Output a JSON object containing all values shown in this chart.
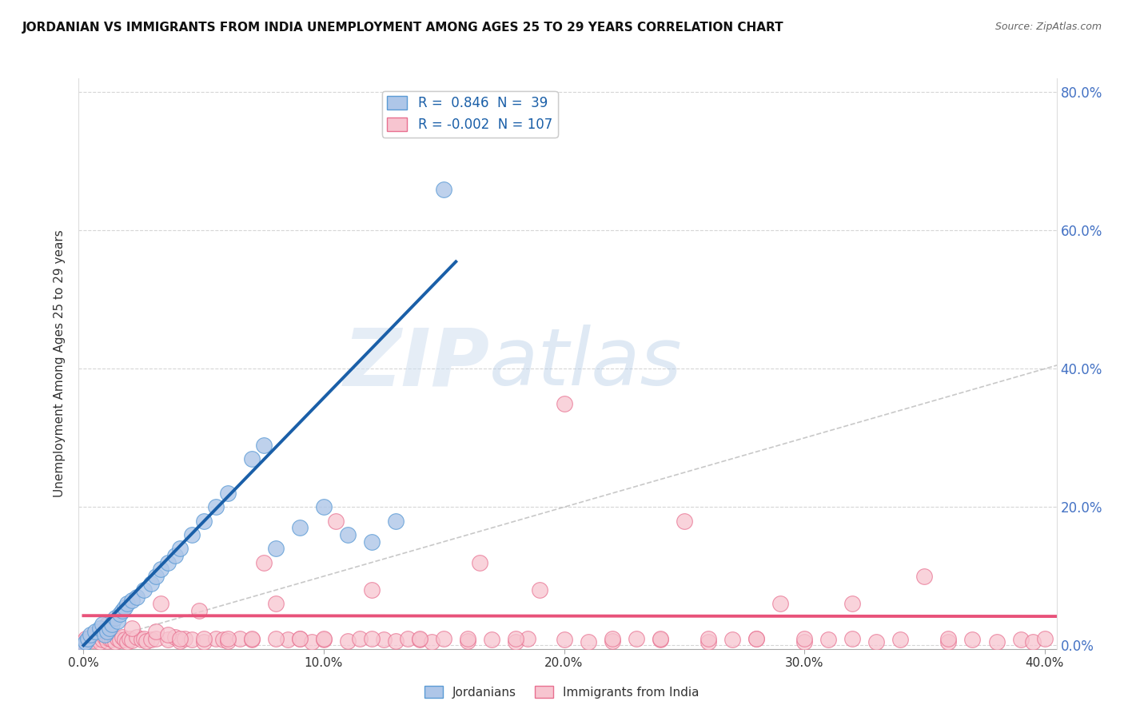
{
  "title": "JORDANIAN VS IMMIGRANTS FROM INDIA UNEMPLOYMENT AMONG AGES 25 TO 29 YEARS CORRELATION CHART",
  "source": "Source: ZipAtlas.com",
  "ylabel": "Unemployment Among Ages 25 to 29 years",
  "xlim": [
    -0.002,
    0.405
  ],
  "ylim": [
    -0.005,
    0.82
  ],
  "xticks": [
    0.0,
    0.1,
    0.2,
    0.3,
    0.4
  ],
  "xtick_labels": [
    "0.0%",
    "10.0%",
    "20.0%",
    "30.0%",
    "40.0%"
  ],
  "yticks": [
    0.0,
    0.2,
    0.4,
    0.6,
    0.8
  ],
  "ytick_labels_right": [
    "0.0%",
    "20.0%",
    "40.0%",
    "60.0%",
    "80.0%"
  ],
  "legend_blue_label": "R =  0.846  N =  39",
  "legend_pink_label": "R = -0.002  N = 107",
  "watermark_zip": "ZIP",
  "watermark_atlas": "atlas",
  "blue_color": "#aec6e8",
  "blue_edge_color": "#5b9bd5",
  "pink_color": "#f7c5d0",
  "pink_edge_color": "#e87090",
  "blue_line_color": "#1a5fa8",
  "pink_line_color": "#e8527a",
  "grid_color": "#cccccc",
  "blue_scatter_x": [
    0.0,
    0.001,
    0.002,
    0.003,
    0.005,
    0.007,
    0.008,
    0.009,
    0.01,
    0.011,
    0.012,
    0.013,
    0.014,
    0.015,
    0.016,
    0.017,
    0.018,
    0.02,
    0.022,
    0.025,
    0.028,
    0.03,
    0.032,
    0.035,
    0.038,
    0.04,
    0.045,
    0.05,
    0.055,
    0.06,
    0.07,
    0.075,
    0.08,
    0.09,
    0.1,
    0.11,
    0.12,
    0.13,
    0.15
  ],
  "blue_scatter_y": [
    0.0,
    0.005,
    0.01,
    0.015,
    0.02,
    0.025,
    0.03,
    0.015,
    0.02,
    0.025,
    0.03,
    0.04,
    0.035,
    0.045,
    0.05,
    0.055,
    0.06,
    0.065,
    0.07,
    0.08,
    0.09,
    0.1,
    0.11,
    0.12,
    0.13,
    0.14,
    0.16,
    0.18,
    0.2,
    0.22,
    0.27,
    0.29,
    0.14,
    0.17,
    0.2,
    0.16,
    0.15,
    0.18,
    0.66
  ],
  "pink_scatter_x": [
    0.0,
    0.001,
    0.002,
    0.003,
    0.004,
    0.005,
    0.006,
    0.007,
    0.008,
    0.009,
    0.01,
    0.011,
    0.012,
    0.013,
    0.014,
    0.015,
    0.016,
    0.017,
    0.018,
    0.019,
    0.02,
    0.022,
    0.024,
    0.025,
    0.026,
    0.028,
    0.03,
    0.032,
    0.035,
    0.038,
    0.04,
    0.042,
    0.045,
    0.048,
    0.05,
    0.055,
    0.058,
    0.06,
    0.065,
    0.07,
    0.075,
    0.08,
    0.085,
    0.09,
    0.095,
    0.1,
    0.105,
    0.11,
    0.115,
    0.12,
    0.125,
    0.13,
    0.135,
    0.14,
    0.145,
    0.15,
    0.16,
    0.165,
    0.17,
    0.18,
    0.185,
    0.19,
    0.2,
    0.21,
    0.22,
    0.23,
    0.24,
    0.25,
    0.26,
    0.27,
    0.28,
    0.29,
    0.3,
    0.31,
    0.32,
    0.33,
    0.34,
    0.35,
    0.36,
    0.37,
    0.38,
    0.39,
    0.395,
    0.4,
    0.01,
    0.02,
    0.03,
    0.035,
    0.04,
    0.05,
    0.06,
    0.07,
    0.08,
    0.09,
    0.1,
    0.12,
    0.14,
    0.16,
    0.18,
    0.2,
    0.22,
    0.24,
    0.26,
    0.28,
    0.3,
    0.32,
    0.36
  ],
  "pink_scatter_y": [
    0.005,
    0.01,
    0.008,
    0.012,
    0.007,
    0.015,
    0.01,
    0.005,
    0.008,
    0.012,
    0.006,
    0.01,
    0.008,
    0.005,
    0.01,
    0.007,
    0.012,
    0.008,
    0.005,
    0.01,
    0.007,
    0.012,
    0.008,
    0.01,
    0.006,
    0.008,
    0.01,
    0.06,
    0.008,
    0.012,
    0.006,
    0.01,
    0.008,
    0.05,
    0.005,
    0.01,
    0.008,
    0.006,
    0.01,
    0.008,
    0.12,
    0.06,
    0.008,
    0.01,
    0.005,
    0.008,
    0.18,
    0.006,
    0.01,
    0.08,
    0.008,
    0.006,
    0.01,
    0.008,
    0.005,
    0.01,
    0.006,
    0.12,
    0.008,
    0.005,
    0.01,
    0.08,
    0.008,
    0.005,
    0.006,
    0.01,
    0.008,
    0.18,
    0.005,
    0.008,
    0.01,
    0.06,
    0.005,
    0.008,
    0.06,
    0.005,
    0.008,
    0.1,
    0.005,
    0.008,
    0.005,
    0.008,
    0.005,
    0.01,
    0.03,
    0.025,
    0.02,
    0.015,
    0.01,
    0.01,
    0.01,
    0.01,
    0.01,
    0.01,
    0.01,
    0.01,
    0.01,
    0.01,
    0.01,
    0.35,
    0.01,
    0.01,
    0.01,
    0.01,
    0.01,
    0.01,
    0.01
  ],
  "blue_line_x": [
    0.0,
    0.155
  ],
  "blue_line_y": [
    0.0,
    0.555
  ],
  "pink_line_x": [
    0.0,
    0.405
  ],
  "pink_line_y": [
    0.043,
    0.042
  ],
  "ref_line_x": [
    0.0,
    0.82
  ],
  "ref_line_y": [
    0.0,
    0.82
  ],
  "legend_bottom_blue": "Jordanians",
  "legend_bottom_pink": "Immigrants from India"
}
